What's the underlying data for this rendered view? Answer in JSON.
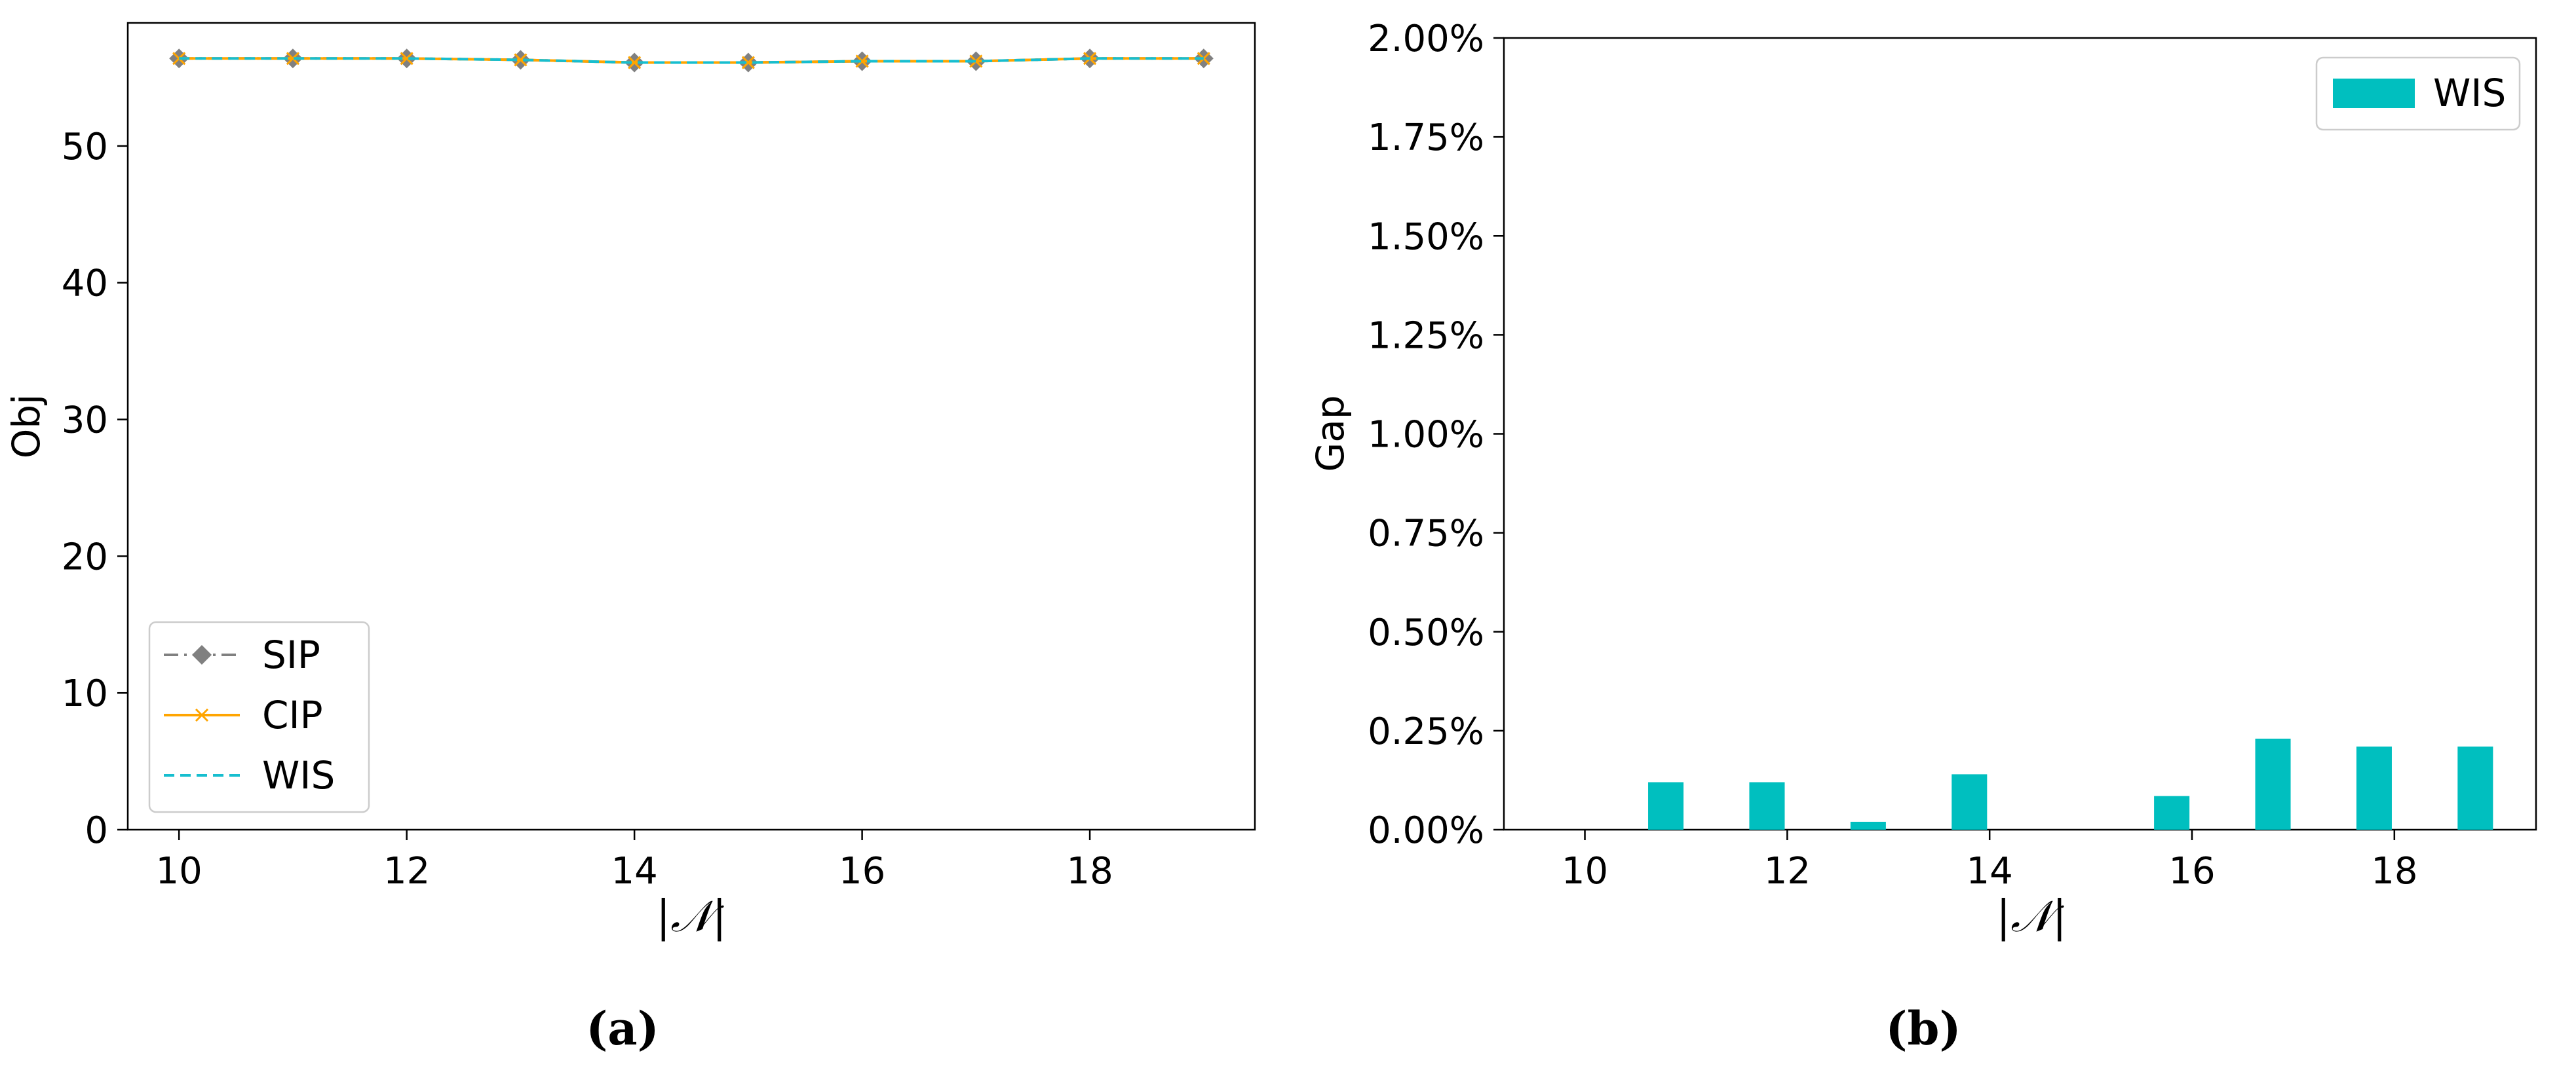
{
  "chart_data": [
    {
      "type": "line",
      "panel_label": "(a)",
      "xlabel": "|𝒩|",
      "ylabel": "Obj",
      "xlim": [
        9.55,
        19.45
      ],
      "ylim": [
        0,
        59
      ],
      "xticks": [
        10,
        12,
        14,
        16,
        18
      ],
      "yticks": [
        0,
        10,
        20,
        30,
        40,
        50
      ],
      "x": [
        10,
        11,
        12,
        13,
        14,
        15,
        16,
        17,
        18,
        19
      ],
      "series": [
        {
          "name": "SIP",
          "values": [
            56.4,
            56.4,
            56.4,
            56.3,
            56.1,
            56.1,
            56.2,
            56.2,
            56.4,
            56.4
          ],
          "color": "#808080",
          "linestyle": "dashdot",
          "marker": "diamond"
        },
        {
          "name": "CIP",
          "values": [
            56.4,
            56.4,
            56.4,
            56.3,
            56.1,
            56.1,
            56.2,
            56.2,
            56.4,
            56.4
          ],
          "color": "#ffa500",
          "linestyle": "solid",
          "marker": "x"
        },
        {
          "name": "WIS",
          "values": [
            56.4,
            56.4,
            56.4,
            56.3,
            56.1,
            56.1,
            56.2,
            56.2,
            56.4,
            56.4
          ],
          "color": "#17becf",
          "linestyle": "dashed",
          "marker": "none"
        }
      ],
      "legend": "lower-left",
      "grid": false
    },
    {
      "type": "bar",
      "panel_label": "(b)",
      "xlabel": "|𝒩|",
      "ylabel": "Gap",
      "xlim": [
        9.2,
        19.4
      ],
      "ylim": [
        0,
        2.0
      ],
      "xticks": [
        10,
        12,
        14,
        16,
        18
      ],
      "yticks": [
        0,
        0.25,
        0.5,
        0.75,
        1.0,
        1.25,
        1.5,
        1.75,
        2.0
      ],
      "ytick_labels": [
        "0.00%",
        "0.25%",
        "0.50%",
        "0.75%",
        "1.00%",
        "1.25%",
        "1.50%",
        "1.75%",
        "2.00%"
      ],
      "bar_width": 0.35,
      "series": [
        {
          "name": "WIS",
          "color": "#00bfbf",
          "x": [
            10.8,
            11.8,
            12.8,
            13.8,
            15.8,
            16.8,
            17.8,
            18.8
          ],
          "values": [
            0.12,
            0.12,
            0.02,
            0.14,
            0.085,
            0.23,
            0.21,
            0.21
          ]
        }
      ],
      "legend": "top-right",
      "grid": false
    }
  ]
}
